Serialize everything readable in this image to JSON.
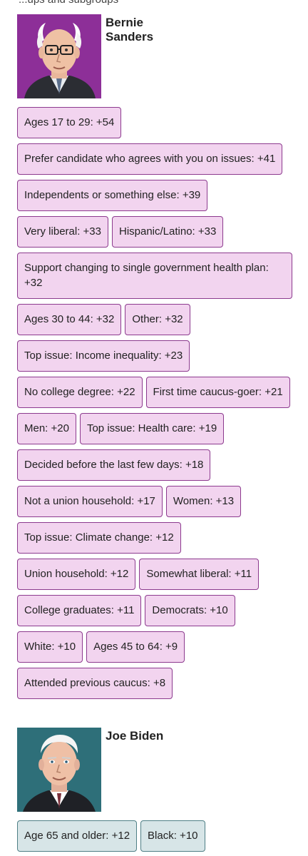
{
  "top_fragment": "...ups and subgroups",
  "candidates": [
    {
      "name": "Bernie Sanders",
      "name_line1": "Bernie",
      "name_line2": "Sanders",
      "portrait_bg": "#8d2f98",
      "chip_bg": "#f2d4ef",
      "chip_border": "#8c3a8e",
      "groups": [
        "Ages 17 to 29:  +54",
        "Prefer candidate who agrees with you on issues:  +41",
        "Independents or something else:  +39",
        "Very liberal:  +33",
        "Hispanic/Latino:  +33",
        "Support changing to single government health plan:  +32",
        "Ages 30 to 44:  +32",
        "Other:  +32",
        "Top issue: Income inequality:  +23",
        "No college degree:  +22",
        "First time caucus-goer:  +21",
        "Men:  +20",
        "Top issue: Health care:  +19",
        "Decided before the last few days:  +18",
        "Not a union household:  +17",
        "Women:  +13",
        "Top issue: Climate change:  +12",
        "Union household:  +12",
        "Somewhat liberal:  +11",
        "College graduates:  +11",
        "Democrats:  +10",
        "White:  +10",
        "Ages 45 to 64:  +9",
        "Attended previous caucus:  +8"
      ]
    },
    {
      "name": "Joe Biden",
      "portrait_bg": "#2e6f79",
      "chip_bg": "#d7e5e7",
      "chip_border": "#4f7f86",
      "groups": [
        "Age 65 and older:  +12",
        "Black:  +10"
      ]
    }
  ]
}
